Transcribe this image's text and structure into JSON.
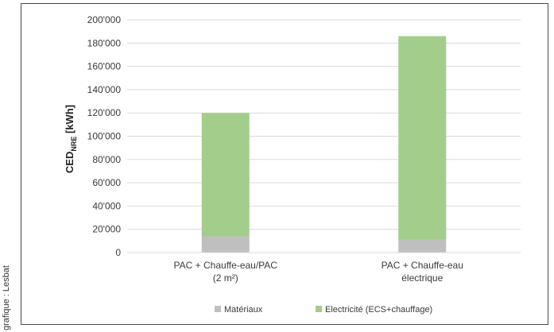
{
  "credit": "grafique : Lesbat",
  "chart_data": {
    "type": "bar",
    "stacked": true,
    "ylabel_main": "CED",
    "ylabel_sub": "NRE",
    "ylabel_unit": " [kWh]",
    "ylim": [
      0,
      200000
    ],
    "yticks": [
      0,
      20000,
      40000,
      60000,
      80000,
      100000,
      120000,
      140000,
      160000,
      180000,
      200000
    ],
    "ytick_labels": [
      "0",
      "20'000",
      "40'000",
      "60'000",
      "80'000",
      "100'000",
      "120'000",
      "140'000",
      "160'000",
      "180'000",
      "200'000"
    ],
    "grid": true,
    "legend_position": "bottom",
    "categories": [
      [
        "PAC + Chauffe-eau/PAC",
        "(2 m²)"
      ],
      [
        "PAC + Chauffe-eau",
        "électrique"
      ]
    ],
    "series": [
      {
        "name": "Matériaux",
        "color": "#bfbfbf",
        "values": [
          14000,
          11000
        ]
      },
      {
        "name": "Electricité (ECS+chauffage)",
        "color": "#a3cd8a",
        "values": [
          106000,
          175000
        ]
      }
    ]
  }
}
